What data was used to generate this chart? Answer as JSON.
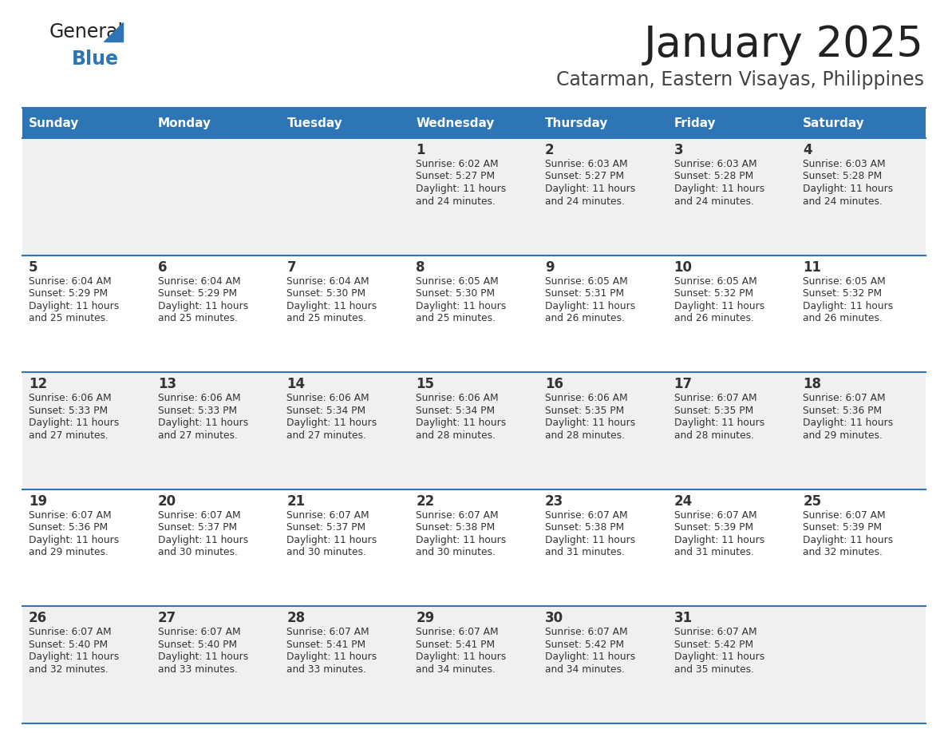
{
  "title": "January 2025",
  "subtitle": "Catarman, Eastern Visayas, Philippines",
  "header_bg_color": "#2E75B6",
  "header_text_color": "#FFFFFF",
  "cell_bg_even": "#F0F0F0",
  "cell_bg_odd": "#FFFFFF",
  "day_number_color": "#333333",
  "cell_text_color": "#333333",
  "grid_line_color": "#2E75B6",
  "title_color": "#222222",
  "subtitle_color": "#444444",
  "logo_general_color": "#222222",
  "logo_blue_color": "#2E75B6",
  "logo_triangle_color": "#2E75B6",
  "days_of_week": [
    "Sunday",
    "Monday",
    "Tuesday",
    "Wednesday",
    "Thursday",
    "Friday",
    "Saturday"
  ],
  "calendar_data": [
    [
      {
        "day": null,
        "sunrise": null,
        "sunset": null,
        "daylight_line1": null,
        "daylight_line2": null
      },
      {
        "day": null,
        "sunrise": null,
        "sunset": null,
        "daylight_line1": null,
        "daylight_line2": null
      },
      {
        "day": null,
        "sunrise": null,
        "sunset": null,
        "daylight_line1": null,
        "daylight_line2": null
      },
      {
        "day": "1",
        "sunrise": "6:02 AM",
        "sunset": "5:27 PM",
        "daylight_line1": "Daylight: 11 hours",
        "daylight_line2": "and 24 minutes."
      },
      {
        "day": "2",
        "sunrise": "6:03 AM",
        "sunset": "5:27 PM",
        "daylight_line1": "Daylight: 11 hours",
        "daylight_line2": "and 24 minutes."
      },
      {
        "day": "3",
        "sunrise": "6:03 AM",
        "sunset": "5:28 PM",
        "daylight_line1": "Daylight: 11 hours",
        "daylight_line2": "and 24 minutes."
      },
      {
        "day": "4",
        "sunrise": "6:03 AM",
        "sunset": "5:28 PM",
        "daylight_line1": "Daylight: 11 hours",
        "daylight_line2": "and 24 minutes."
      }
    ],
    [
      {
        "day": "5",
        "sunrise": "6:04 AM",
        "sunset": "5:29 PM",
        "daylight_line1": "Daylight: 11 hours",
        "daylight_line2": "and 25 minutes."
      },
      {
        "day": "6",
        "sunrise": "6:04 AM",
        "sunset": "5:29 PM",
        "daylight_line1": "Daylight: 11 hours",
        "daylight_line2": "and 25 minutes."
      },
      {
        "day": "7",
        "sunrise": "6:04 AM",
        "sunset": "5:30 PM",
        "daylight_line1": "Daylight: 11 hours",
        "daylight_line2": "and 25 minutes."
      },
      {
        "day": "8",
        "sunrise": "6:05 AM",
        "sunset": "5:30 PM",
        "daylight_line1": "Daylight: 11 hours",
        "daylight_line2": "and 25 minutes."
      },
      {
        "day": "9",
        "sunrise": "6:05 AM",
        "sunset": "5:31 PM",
        "daylight_line1": "Daylight: 11 hours",
        "daylight_line2": "and 26 minutes."
      },
      {
        "day": "10",
        "sunrise": "6:05 AM",
        "sunset": "5:32 PM",
        "daylight_line1": "Daylight: 11 hours",
        "daylight_line2": "and 26 minutes."
      },
      {
        "day": "11",
        "sunrise": "6:05 AM",
        "sunset": "5:32 PM",
        "daylight_line1": "Daylight: 11 hours",
        "daylight_line2": "and 26 minutes."
      }
    ],
    [
      {
        "day": "12",
        "sunrise": "6:06 AM",
        "sunset": "5:33 PM",
        "daylight_line1": "Daylight: 11 hours",
        "daylight_line2": "and 27 minutes."
      },
      {
        "day": "13",
        "sunrise": "6:06 AM",
        "sunset": "5:33 PM",
        "daylight_line1": "Daylight: 11 hours",
        "daylight_line2": "and 27 minutes."
      },
      {
        "day": "14",
        "sunrise": "6:06 AM",
        "sunset": "5:34 PM",
        "daylight_line1": "Daylight: 11 hours",
        "daylight_line2": "and 27 minutes."
      },
      {
        "day": "15",
        "sunrise": "6:06 AM",
        "sunset": "5:34 PM",
        "daylight_line1": "Daylight: 11 hours",
        "daylight_line2": "and 28 minutes."
      },
      {
        "day": "16",
        "sunrise": "6:06 AM",
        "sunset": "5:35 PM",
        "daylight_line1": "Daylight: 11 hours",
        "daylight_line2": "and 28 minutes."
      },
      {
        "day": "17",
        "sunrise": "6:07 AM",
        "sunset": "5:35 PM",
        "daylight_line1": "Daylight: 11 hours",
        "daylight_line2": "and 28 minutes."
      },
      {
        "day": "18",
        "sunrise": "6:07 AM",
        "sunset": "5:36 PM",
        "daylight_line1": "Daylight: 11 hours",
        "daylight_line2": "and 29 minutes."
      }
    ],
    [
      {
        "day": "19",
        "sunrise": "6:07 AM",
        "sunset": "5:36 PM",
        "daylight_line1": "Daylight: 11 hours",
        "daylight_line2": "and 29 minutes."
      },
      {
        "day": "20",
        "sunrise": "6:07 AM",
        "sunset": "5:37 PM",
        "daylight_line1": "Daylight: 11 hours",
        "daylight_line2": "and 30 minutes."
      },
      {
        "day": "21",
        "sunrise": "6:07 AM",
        "sunset": "5:37 PM",
        "daylight_line1": "Daylight: 11 hours",
        "daylight_line2": "and 30 minutes."
      },
      {
        "day": "22",
        "sunrise": "6:07 AM",
        "sunset": "5:38 PM",
        "daylight_line1": "Daylight: 11 hours",
        "daylight_line2": "and 30 minutes."
      },
      {
        "day": "23",
        "sunrise": "6:07 AM",
        "sunset": "5:38 PM",
        "daylight_line1": "Daylight: 11 hours",
        "daylight_line2": "and 31 minutes."
      },
      {
        "day": "24",
        "sunrise": "6:07 AM",
        "sunset": "5:39 PM",
        "daylight_line1": "Daylight: 11 hours",
        "daylight_line2": "and 31 minutes."
      },
      {
        "day": "25",
        "sunrise": "6:07 AM",
        "sunset": "5:39 PM",
        "daylight_line1": "Daylight: 11 hours",
        "daylight_line2": "and 32 minutes."
      }
    ],
    [
      {
        "day": "26",
        "sunrise": "6:07 AM",
        "sunset": "5:40 PM",
        "daylight_line1": "Daylight: 11 hours",
        "daylight_line2": "and 32 minutes."
      },
      {
        "day": "27",
        "sunrise": "6:07 AM",
        "sunset": "5:40 PM",
        "daylight_line1": "Daylight: 11 hours",
        "daylight_line2": "and 33 minutes."
      },
      {
        "day": "28",
        "sunrise": "6:07 AM",
        "sunset": "5:41 PM",
        "daylight_line1": "Daylight: 11 hours",
        "daylight_line2": "and 33 minutes."
      },
      {
        "day": "29",
        "sunrise": "6:07 AM",
        "sunset": "5:41 PM",
        "daylight_line1": "Daylight: 11 hours",
        "daylight_line2": "and 34 minutes."
      },
      {
        "day": "30",
        "sunrise": "6:07 AM",
        "sunset": "5:42 PM",
        "daylight_line1": "Daylight: 11 hours",
        "daylight_line2": "and 34 minutes."
      },
      {
        "day": "31",
        "sunrise": "6:07 AM",
        "sunset": "5:42 PM",
        "daylight_line1": "Daylight: 11 hours",
        "daylight_line2": "and 35 minutes."
      },
      {
        "day": null,
        "sunrise": null,
        "sunset": null,
        "daylight_line1": null,
        "daylight_line2": null
      }
    ]
  ],
  "fig_width": 11.88,
  "fig_height": 9.18,
  "dpi": 100
}
